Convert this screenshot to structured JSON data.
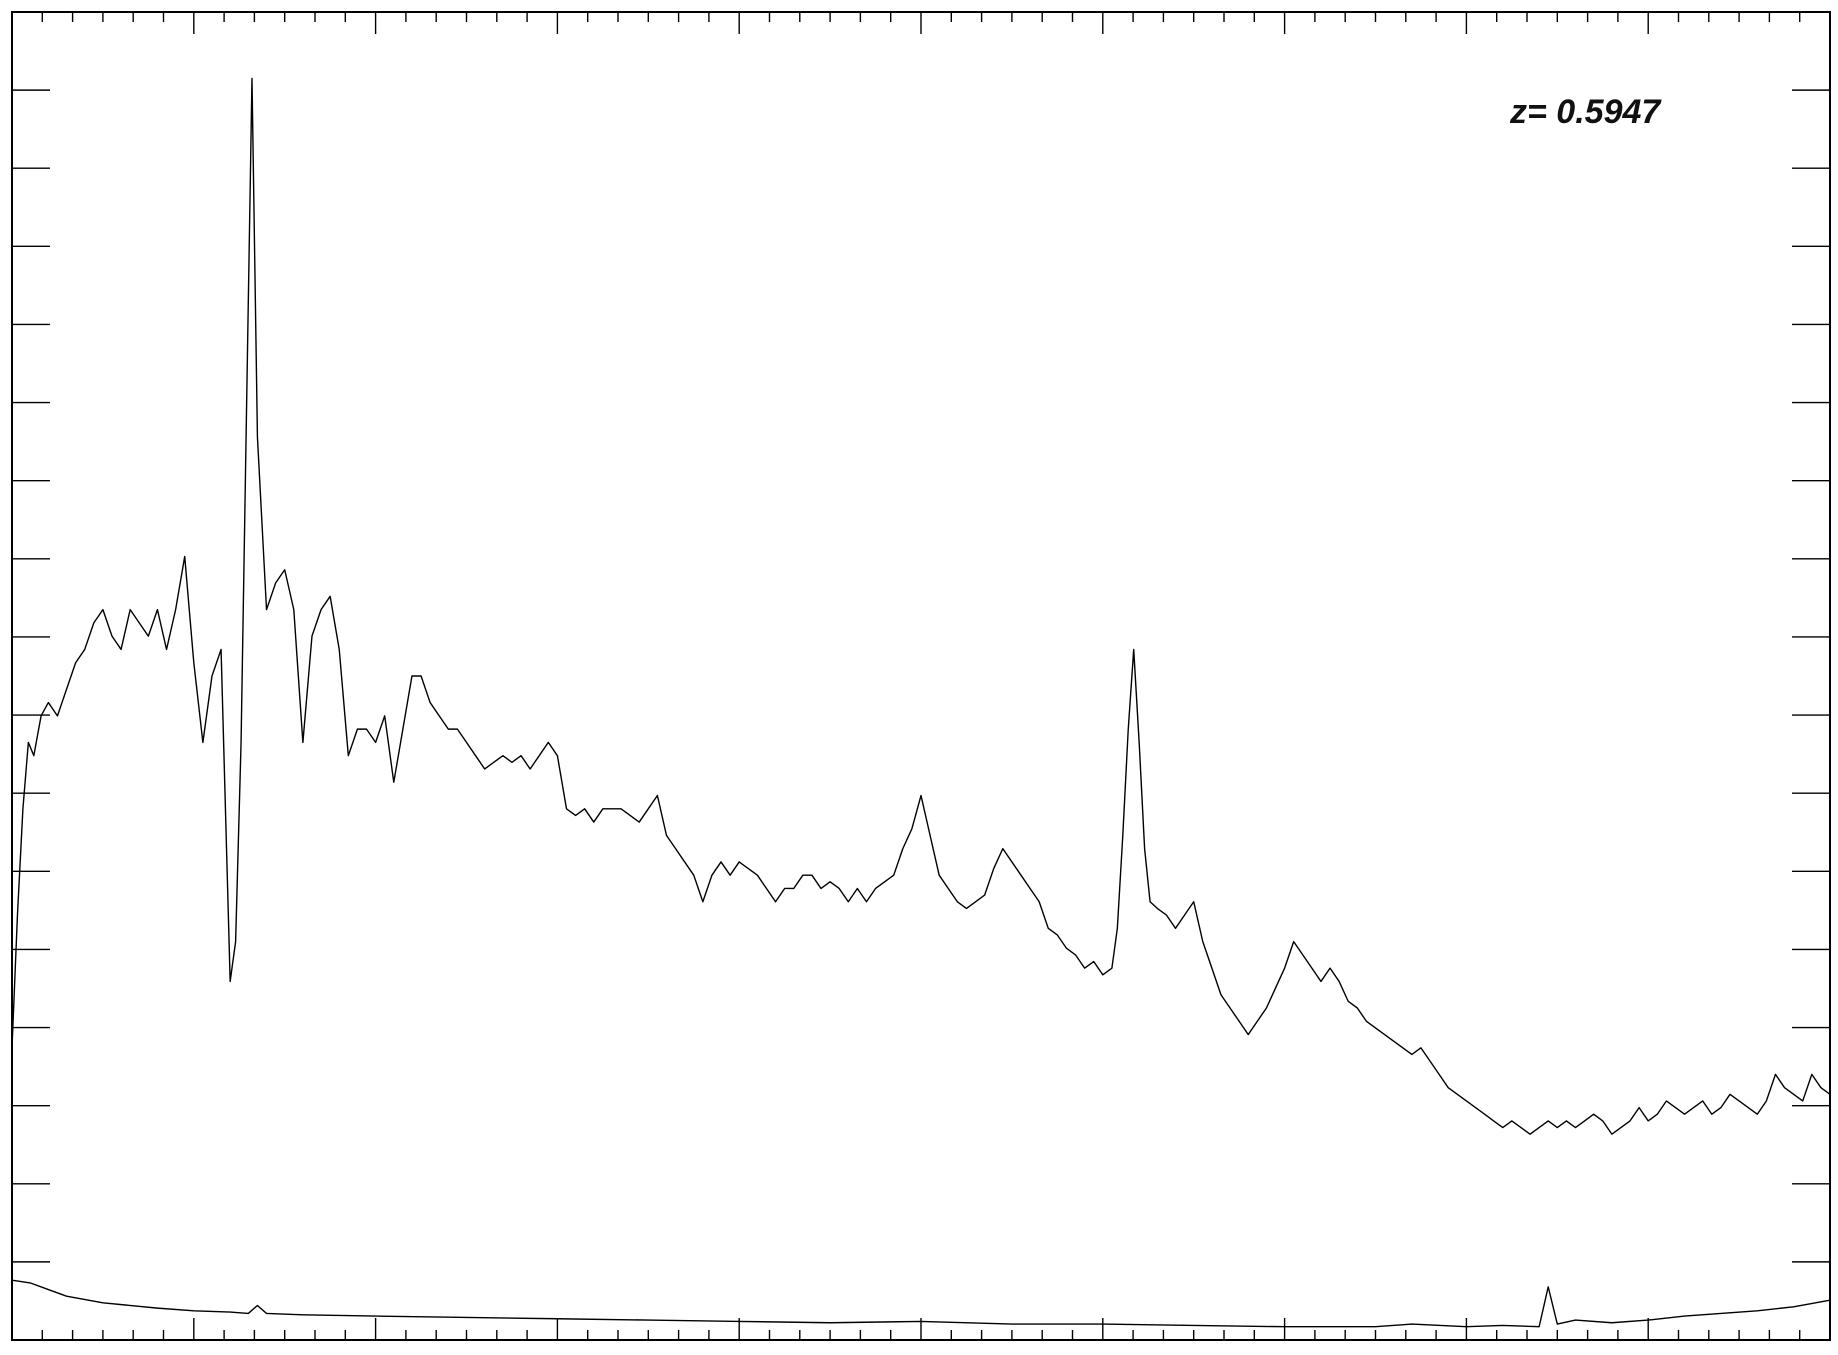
{
  "chart_data": {
    "type": "line",
    "title": "",
    "xlabel": "",
    "ylabel": "",
    "annotation": "z=  0.5947",
    "grid": false,
    "xlim": [
      0,
      1
    ],
    "ylim": [
      0,
      1
    ],
    "series": [
      {
        "points": [
          [
            0.0,
            0.22
          ],
          [
            0.003,
            0.32
          ],
          [
            0.006,
            0.4
          ],
          [
            0.009,
            0.45
          ],
          [
            0.012,
            0.44
          ],
          [
            0.016,
            0.47
          ],
          [
            0.02,
            0.48
          ],
          [
            0.025,
            0.47
          ],
          [
            0.03,
            0.49
          ],
          [
            0.035,
            0.51
          ],
          [
            0.04,
            0.52
          ],
          [
            0.045,
            0.54
          ],
          [
            0.05,
            0.55
          ],
          [
            0.055,
            0.53
          ],
          [
            0.06,
            0.52
          ],
          [
            0.065,
            0.55
          ],
          [
            0.07,
            0.54
          ],
          [
            0.075,
            0.53
          ],
          [
            0.08,
            0.55
          ],
          [
            0.085,
            0.52
          ],
          [
            0.09,
            0.55
          ],
          [
            0.095,
            0.59
          ],
          [
            0.1,
            0.51
          ],
          [
            0.105,
            0.45
          ],
          [
            0.11,
            0.5
          ],
          [
            0.115,
            0.52
          ],
          [
            0.12,
            0.27
          ],
          [
            0.123,
            0.3
          ],
          [
            0.126,
            0.45
          ],
          [
            0.129,
            0.7
          ],
          [
            0.132,
            0.95
          ],
          [
            0.135,
            0.68
          ],
          [
            0.14,
            0.55
          ],
          [
            0.145,
            0.57
          ],
          [
            0.15,
            0.58
          ],
          [
            0.155,
            0.55
          ],
          [
            0.16,
            0.45
          ],
          [
            0.165,
            0.53
          ],
          [
            0.17,
            0.55
          ],
          [
            0.175,
            0.56
          ],
          [
            0.18,
            0.52
          ],
          [
            0.185,
            0.44
          ],
          [
            0.19,
            0.46
          ],
          [
            0.195,
            0.46
          ],
          [
            0.2,
            0.45
          ],
          [
            0.205,
            0.47
          ],
          [
            0.21,
            0.42
          ],
          [
            0.215,
            0.46
          ],
          [
            0.22,
            0.5
          ],
          [
            0.225,
            0.5
          ],
          [
            0.23,
            0.48
          ],
          [
            0.235,
            0.47
          ],
          [
            0.24,
            0.46
          ],
          [
            0.245,
            0.46
          ],
          [
            0.25,
            0.45
          ],
          [
            0.255,
            0.44
          ],
          [
            0.26,
            0.43
          ],
          [
            0.265,
            0.435
          ],
          [
            0.27,
            0.44
          ],
          [
            0.275,
            0.435
          ],
          [
            0.28,
            0.44
          ],
          [
            0.285,
            0.43
          ],
          [
            0.29,
            0.44
          ],
          [
            0.295,
            0.45
          ],
          [
            0.3,
            0.44
          ],
          [
            0.305,
            0.4
          ],
          [
            0.31,
            0.395
          ],
          [
            0.315,
            0.4
          ],
          [
            0.32,
            0.39
          ],
          [
            0.325,
            0.4
          ],
          [
            0.33,
            0.4
          ],
          [
            0.335,
            0.4
          ],
          [
            0.34,
            0.395
          ],
          [
            0.345,
            0.39
          ],
          [
            0.35,
            0.4
          ],
          [
            0.355,
            0.41
          ],
          [
            0.36,
            0.38
          ],
          [
            0.365,
            0.37
          ],
          [
            0.37,
            0.36
          ],
          [
            0.375,
            0.35
          ],
          [
            0.38,
            0.33
          ],
          [
            0.385,
            0.35
          ],
          [
            0.39,
            0.36
          ],
          [
            0.395,
            0.35
          ],
          [
            0.4,
            0.36
          ],
          [
            0.405,
            0.355
          ],
          [
            0.41,
            0.35
          ],
          [
            0.415,
            0.34
          ],
          [
            0.42,
            0.33
          ],
          [
            0.425,
            0.34
          ],
          [
            0.43,
            0.34
          ],
          [
            0.435,
            0.35
          ],
          [
            0.44,
            0.35
          ],
          [
            0.445,
            0.34
          ],
          [
            0.45,
            0.345
          ],
          [
            0.455,
            0.34
          ],
          [
            0.46,
            0.33
          ],
          [
            0.465,
            0.34
          ],
          [
            0.47,
            0.33
          ],
          [
            0.475,
            0.34
          ],
          [
            0.48,
            0.345
          ],
          [
            0.485,
            0.35
          ],
          [
            0.49,
            0.37
          ],
          [
            0.495,
            0.385
          ],
          [
            0.5,
            0.41
          ],
          [
            0.505,
            0.38
          ],
          [
            0.51,
            0.35
          ],
          [
            0.515,
            0.34
          ],
          [
            0.52,
            0.33
          ],
          [
            0.525,
            0.325
          ],
          [
            0.53,
            0.33
          ],
          [
            0.535,
            0.335
          ],
          [
            0.54,
            0.355
          ],
          [
            0.545,
            0.37
          ],
          [
            0.55,
            0.36
          ],
          [
            0.555,
            0.35
          ],
          [
            0.56,
            0.34
          ],
          [
            0.565,
            0.33
          ],
          [
            0.57,
            0.31
          ],
          [
            0.575,
            0.305
          ],
          [
            0.58,
            0.295
          ],
          [
            0.585,
            0.29
          ],
          [
            0.59,
            0.28
          ],
          [
            0.595,
            0.285
          ],
          [
            0.6,
            0.275
          ],
          [
            0.605,
            0.28
          ],
          [
            0.608,
            0.31
          ],
          [
            0.611,
            0.38
          ],
          [
            0.614,
            0.46
          ],
          [
            0.617,
            0.52
          ],
          [
            0.62,
            0.45
          ],
          [
            0.623,
            0.37
          ],
          [
            0.626,
            0.33
          ],
          [
            0.63,
            0.325
          ],
          [
            0.635,
            0.32
          ],
          [
            0.64,
            0.31
          ],
          [
            0.645,
            0.32
          ],
          [
            0.65,
            0.33
          ],
          [
            0.655,
            0.3
          ],
          [
            0.66,
            0.28
          ],
          [
            0.665,
            0.26
          ],
          [
            0.67,
            0.25
          ],
          [
            0.675,
            0.24
          ],
          [
            0.68,
            0.23
          ],
          [
            0.685,
            0.24
          ],
          [
            0.69,
            0.25
          ],
          [
            0.695,
            0.265
          ],
          [
            0.7,
            0.28
          ],
          [
            0.705,
            0.3
          ],
          [
            0.71,
            0.29
          ],
          [
            0.715,
            0.28
          ],
          [
            0.72,
            0.27
          ],
          [
            0.725,
            0.28
          ],
          [
            0.73,
            0.27
          ],
          [
            0.735,
            0.255
          ],
          [
            0.74,
            0.25
          ],
          [
            0.745,
            0.24
          ],
          [
            0.75,
            0.235
          ],
          [
            0.755,
            0.23
          ],
          [
            0.76,
            0.225
          ],
          [
            0.765,
            0.22
          ],
          [
            0.77,
            0.215
          ],
          [
            0.775,
            0.22
          ],
          [
            0.78,
            0.21
          ],
          [
            0.785,
            0.2
          ],
          [
            0.79,
            0.19
          ],
          [
            0.795,
            0.185
          ],
          [
            0.8,
            0.18
          ],
          [
            0.805,
            0.175
          ],
          [
            0.81,
            0.17
          ],
          [
            0.815,
            0.165
          ],
          [
            0.82,
            0.16
          ],
          [
            0.825,
            0.165
          ],
          [
            0.83,
            0.16
          ],
          [
            0.835,
            0.155
          ],
          [
            0.84,
            0.16
          ],
          [
            0.845,
            0.165
          ],
          [
            0.85,
            0.16
          ],
          [
            0.855,
            0.165
          ],
          [
            0.86,
            0.16
          ],
          [
            0.865,
            0.165
          ],
          [
            0.87,
            0.17
          ],
          [
            0.875,
            0.165
          ],
          [
            0.88,
            0.155
          ],
          [
            0.885,
            0.16
          ],
          [
            0.89,
            0.165
          ],
          [
            0.895,
            0.175
          ],
          [
            0.9,
            0.165
          ],
          [
            0.905,
            0.17
          ],
          [
            0.91,
            0.18
          ],
          [
            0.915,
            0.175
          ],
          [
            0.92,
            0.17
          ],
          [
            0.925,
            0.175
          ],
          [
            0.93,
            0.18
          ],
          [
            0.935,
            0.17
          ],
          [
            0.94,
            0.175
          ],
          [
            0.945,
            0.185
          ],
          [
            0.95,
            0.18
          ],
          [
            0.955,
            0.175
          ],
          [
            0.96,
            0.17
          ],
          [
            0.965,
            0.18
          ],
          [
            0.97,
            0.2
          ],
          [
            0.975,
            0.19
          ],
          [
            0.98,
            0.185
          ],
          [
            0.985,
            0.18
          ],
          [
            0.99,
            0.2
          ],
          [
            0.995,
            0.19
          ],
          [
            1.0,
            0.185
          ]
        ]
      },
      {
        "points": [
          [
            0.0,
            0.045
          ],
          [
            0.01,
            0.043
          ],
          [
            0.02,
            0.038
          ],
          [
            0.03,
            0.033
          ],
          [
            0.05,
            0.028
          ],
          [
            0.08,
            0.024
          ],
          [
            0.1,
            0.022
          ],
          [
            0.12,
            0.021
          ],
          [
            0.13,
            0.02
          ],
          [
            0.135,
            0.026
          ],
          [
            0.14,
            0.02
          ],
          [
            0.16,
            0.019
          ],
          [
            0.2,
            0.018
          ],
          [
            0.25,
            0.017
          ],
          [
            0.3,
            0.016
          ],
          [
            0.35,
            0.015
          ],
          [
            0.4,
            0.014
          ],
          [
            0.45,
            0.013
          ],
          [
            0.5,
            0.014
          ],
          [
            0.55,
            0.012
          ],
          [
            0.6,
            0.012
          ],
          [
            0.65,
            0.011
          ],
          [
            0.7,
            0.01
          ],
          [
            0.75,
            0.01
          ],
          [
            0.77,
            0.012
          ],
          [
            0.8,
            0.01
          ],
          [
            0.82,
            0.011
          ],
          [
            0.84,
            0.01
          ],
          [
            0.845,
            0.04
          ],
          [
            0.85,
            0.012
          ],
          [
            0.86,
            0.015
          ],
          [
            0.88,
            0.013
          ],
          [
            0.9,
            0.015
          ],
          [
            0.92,
            0.018
          ],
          [
            0.94,
            0.02
          ],
          [
            0.96,
            0.022
          ],
          [
            0.98,
            0.025
          ],
          [
            1.0,
            0.03
          ]
        ]
      }
    ]
  }
}
